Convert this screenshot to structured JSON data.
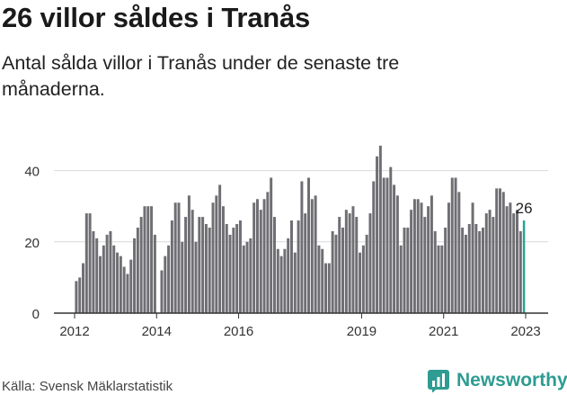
{
  "title": "26 villor såldes i Tranås",
  "subtitle": "Antal sålda villor i Tranås under de senaste tre månaderna.",
  "source": "Källa: Svensk Mäklarstatistik",
  "brand": {
    "name": "Newsworthy",
    "color": "#2e9c92",
    "icon": "newsworthy-logo-icon"
  },
  "colors": {
    "bar": "#6e6e73",
    "highlight": "#2aa198",
    "grid": "#d9d9d9",
    "axis": "#333333"
  },
  "chart_data": {
    "type": "bar",
    "title": "26 villor såldes i Tranås",
    "subtitle": "Antal sålda villor i Tranås under de senaste tre månaderna.",
    "ylim": [
      0,
      50
    ],
    "yticks": [
      0,
      20,
      40
    ],
    "xtick_labels": [
      "2012",
      "2014",
      "2016",
      "2019",
      "2021",
      "2023"
    ],
    "xtick_positions": [
      "2012-01",
      "2014-01",
      "2016-01",
      "2019-01",
      "2021-01",
      "2023-01"
    ],
    "grid": true,
    "start_month": "2012-01",
    "end_month": "2023-01",
    "highlight_label": "26",
    "values": [
      9,
      10,
      14,
      28,
      28,
      23,
      21,
      16,
      19,
      22,
      23,
      19,
      17,
      16,
      13,
      11,
      15,
      21,
      24,
      27,
      30,
      30,
      30,
      22,
      0,
      12,
      16,
      19,
      26,
      31,
      31,
      20,
      27,
      33,
      29,
      20,
      27,
      27,
      25,
      24,
      31,
      33,
      36,
      30,
      25,
      22,
      24,
      25,
      26,
      19,
      20,
      21,
      31,
      32,
      29,
      32,
      34,
      38,
      27,
      18,
      16,
      18,
      21,
      26,
      17,
      26,
      37,
      28,
      38,
      32,
      33,
      19,
      18,
      14,
      14,
      23,
      22,
      27,
      24,
      29,
      28,
      30,
      27,
      17,
      19,
      22,
      28,
      37,
      44,
      47,
      38,
      38,
      41,
      36,
      33,
      19,
      24,
      24,
      29,
      32,
      32,
      31,
      27,
      30,
      33,
      23,
      19,
      19,
      24,
      31,
      38,
      38,
      34,
      24,
      22,
      25,
      31,
      25,
      23,
      24,
      28,
      29,
      27,
      35,
      35,
      34,
      30,
      31,
      28,
      29,
      23,
      26
    ]
  }
}
